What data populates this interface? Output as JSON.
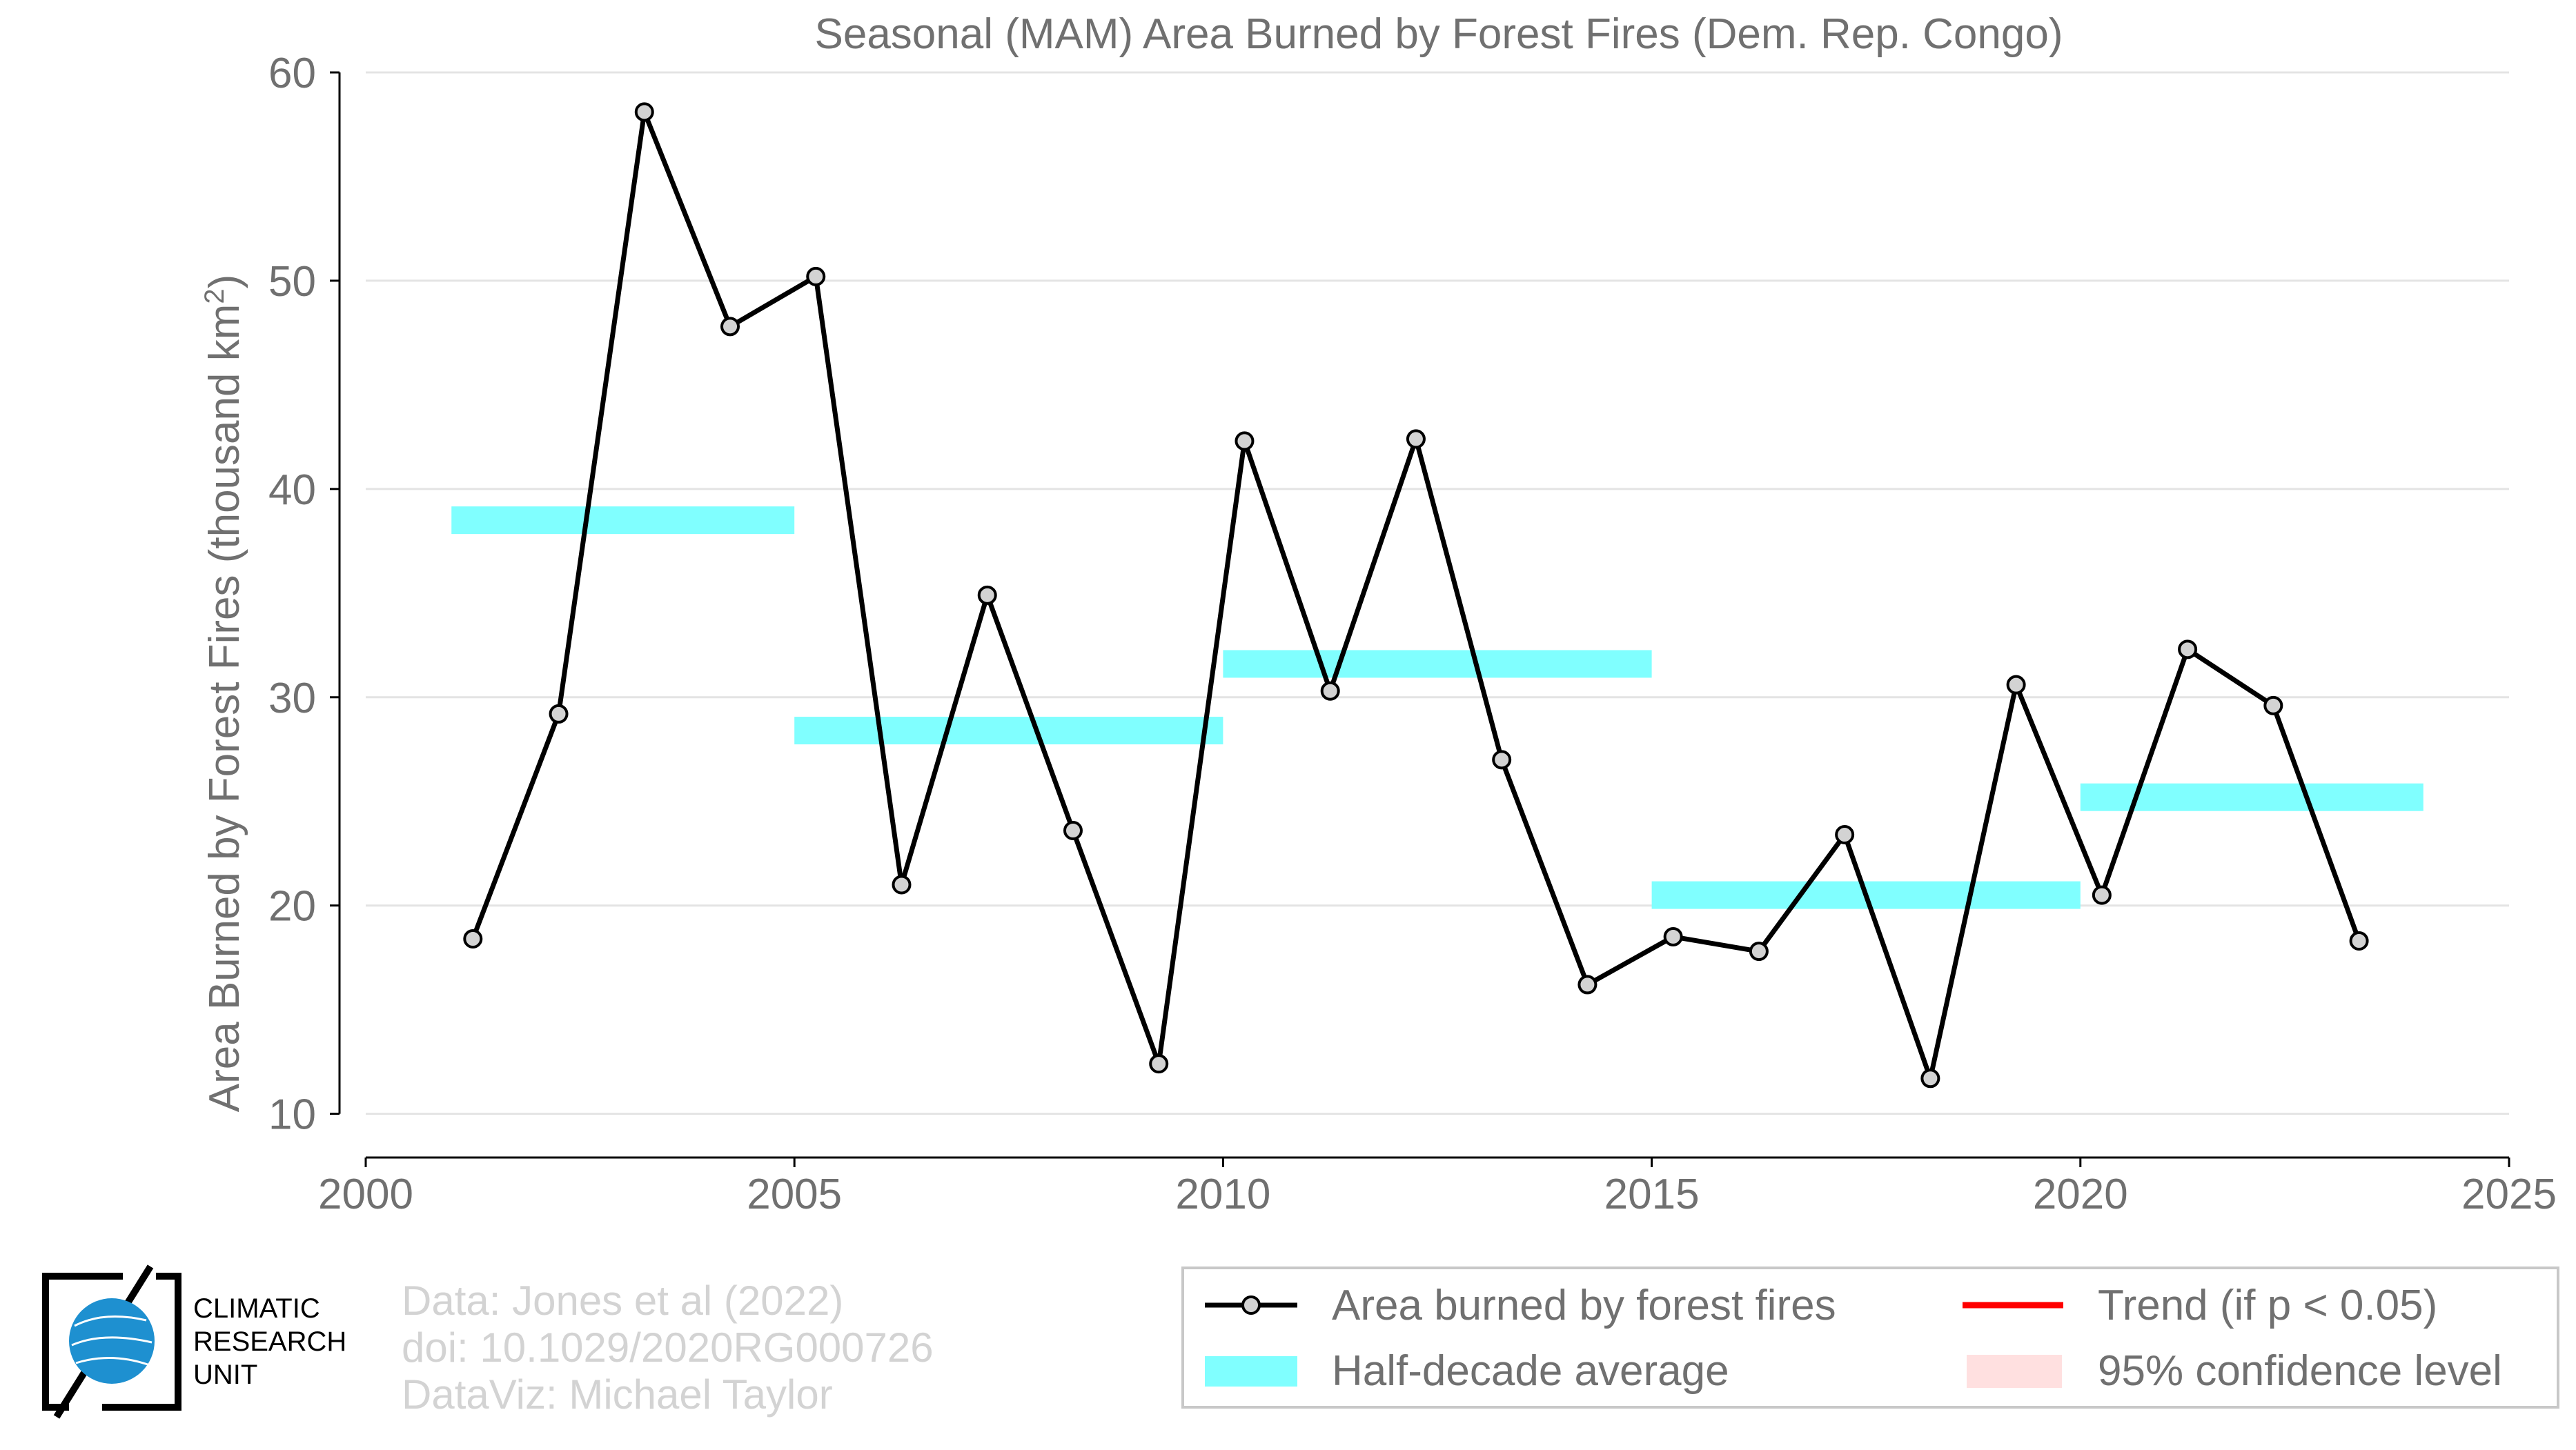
{
  "chart_data": {
    "type": "line",
    "title": "Seasonal (MAM) Area Burned by Forest Fires (Dem. Rep. Congo)",
    "xlabel": "",
    "ylabel": "Area Burned by Forest Fires (thousand km",
    "ylabel_sup": "2",
    "ylabel_end": ")",
    "xlim": [
      2000,
      2025
    ],
    "ylim": [
      8,
      60
    ],
    "xticks": [
      2000,
      2005,
      2010,
      2015,
      2020,
      2025
    ],
    "yticks": [
      10,
      20,
      30,
      40,
      50,
      60
    ],
    "grid": "horizontal",
    "series": [
      {
        "name": "Area burned by forest fires",
        "color": "#000000",
        "marker_fill": "#d3d3d3",
        "x": [
          2001.25,
          2002.25,
          2003.25,
          2004.25,
          2005.25,
          2006.25,
          2007.25,
          2008.25,
          2009.25,
          2010.25,
          2011.25,
          2012.25,
          2013.25,
          2014.25,
          2015.25,
          2016.25,
          2017.25,
          2018.25,
          2019.25,
          2020.25,
          2021.25,
          2022.25,
          2023.25
        ],
        "values": [
          18.4,
          29.2,
          58.1,
          47.8,
          50.2,
          21.0,
          34.9,
          23.6,
          12.4,
          42.3,
          30.3,
          42.4,
          27.0,
          16.2,
          18.5,
          17.8,
          23.4,
          11.7,
          30.6,
          20.5,
          32.3,
          29.6,
          18.3
        ]
      },
      {
        "name": "Half-decade average",
        "color": "#80ffff",
        "segments": [
          {
            "x_start": 2001,
            "x_end": 2005,
            "value": 38.5
          },
          {
            "x_start": 2005,
            "x_end": 2010,
            "value": 28.4
          },
          {
            "x_start": 2010,
            "x_end": 2015,
            "value": 31.6
          },
          {
            "x_start": 2015,
            "x_end": 2020,
            "value": 20.5
          },
          {
            "x_start": 2020,
            "x_end": 2024,
            "value": 25.2
          }
        ]
      }
    ],
    "legend": {
      "placement": "bottom-right",
      "items": [
        {
          "label": "Area burned by forest fires",
          "kind": "line-marker",
          "color": "#000000"
        },
        {
          "label": "Trend (if p < 0.05)",
          "kind": "line",
          "color": "#ff0000"
        },
        {
          "label": "Half-decade average",
          "kind": "band",
          "color": "#80ffff"
        },
        {
          "label": "95% confidence level",
          "kind": "band",
          "color": "#ffe0e0"
        }
      ]
    }
  },
  "credits": {
    "line1": "Data: Jones et al (2022)",
    "line2": "doi: 10.1029/2020RG000726",
    "line3": "DataViz: Michael Taylor"
  },
  "logo": {
    "line1": "CLIMATIC",
    "line2": "RESEARCH",
    "line3": "UNIT",
    "accent_color": "#1e90d0"
  }
}
